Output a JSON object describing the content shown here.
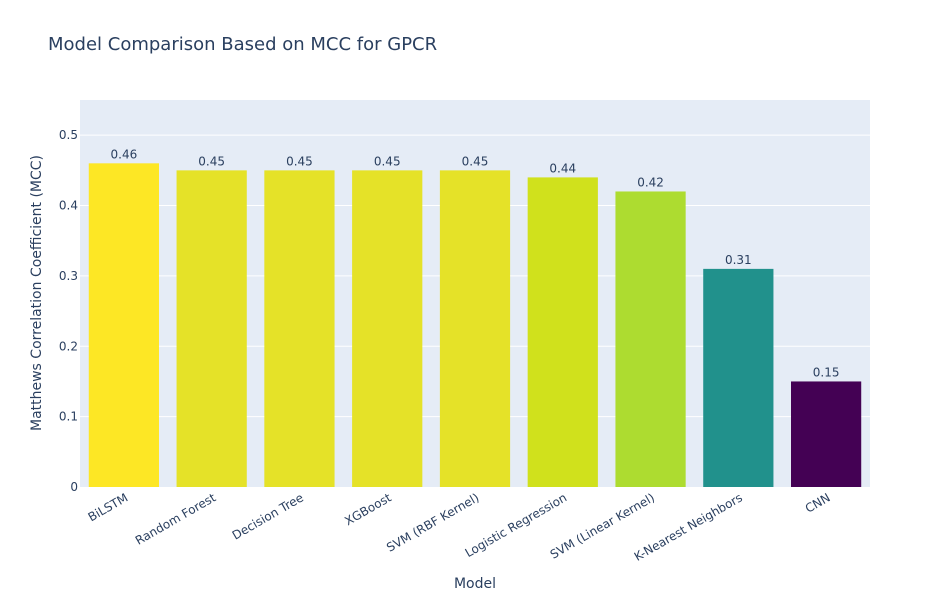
{
  "chart_data": {
    "type": "bar",
    "title": "Model Comparison Based on MCC for GPCR",
    "xlabel": "Model",
    "ylabel": "Matthews Correlation Coefficient (MCC)",
    "categories": [
      "BiLSTM",
      "Random Forest",
      "Decision Tree",
      "XGBoost",
      "SVM (RBF Kernel)",
      "Logistic Regression",
      "SVM (Linear Kernel)",
      "K-Nearest Neighbors",
      "CNN"
    ],
    "values": [
      0.46,
      0.45,
      0.45,
      0.45,
      0.45,
      0.44,
      0.42,
      0.31,
      0.15
    ],
    "data_labels": [
      "0.46",
      "0.45",
      "0.45",
      "0.45",
      "0.45",
      "0.44",
      "0.42",
      "0.31",
      "0.15"
    ],
    "colors": [
      "#fde725",
      "#e5e228",
      "#e5e228",
      "#e5e228",
      "#e5e228",
      "#d0e11c",
      "#addc30",
      "#21918c",
      "#440154"
    ],
    "ylim": [
      0,
      0.55
    ],
    "yticks": [
      0,
      0.1,
      0.2,
      0.3,
      0.4,
      0.5
    ],
    "ytick_labels": [
      "0",
      "0.1",
      "0.2",
      "0.3",
      "0.4",
      "0.5"
    ],
    "grid": true,
    "plot_bgcolor": "#e5ecf6",
    "legend": "none"
  }
}
